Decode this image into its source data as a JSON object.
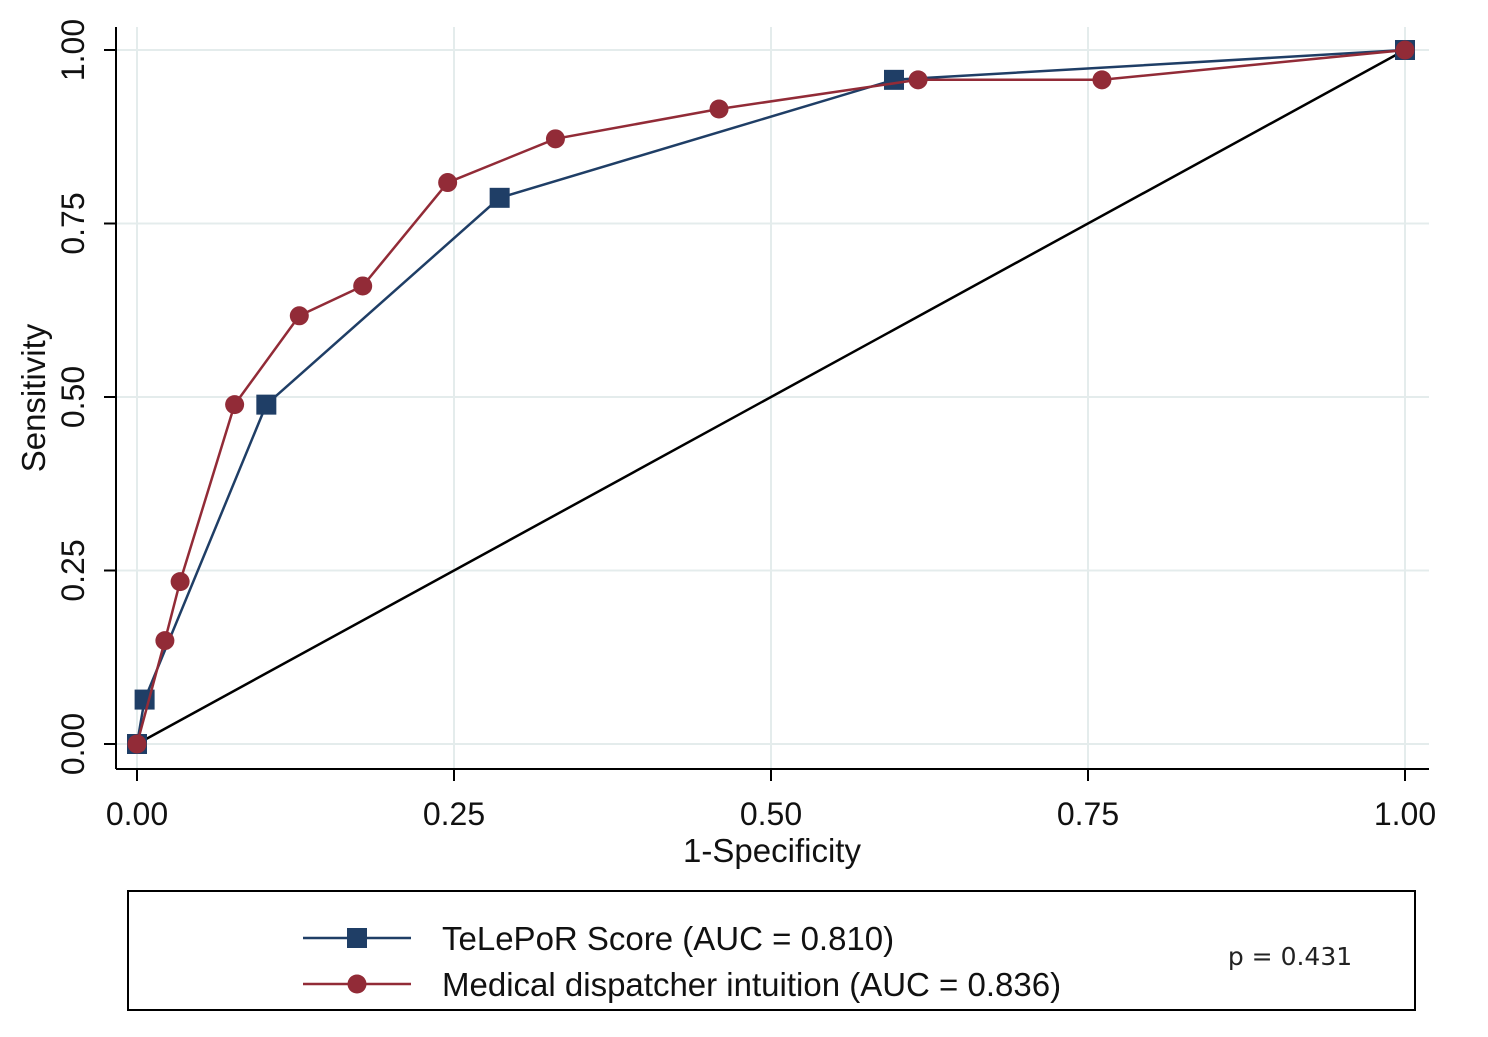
{
  "chart_data": {
    "type": "line",
    "title": "",
    "xlabel": "1-Specificity",
    "ylabel": "Sensitivity",
    "xlim": [
      0,
      1
    ],
    "ylim": [
      0,
      1
    ],
    "x_ticks": [
      "0.00",
      "0.25",
      "0.50",
      "0.75",
      "1.00"
    ],
    "y_ticks": [
      "0.00",
      "0.25",
      "0.50",
      "0.75",
      "1.00"
    ],
    "grid": true,
    "legend_position": "bottom",
    "series": [
      {
        "name": "TeLePoR Score (AUC = 0.810)",
        "color": "#1f3e66",
        "marker": "square",
        "points": [
          [
            0.0,
            0.0
          ],
          [
            0.006,
            0.064
          ],
          [
            0.102,
            0.489
          ],
          [
            0.286,
            0.787
          ],
          [
            0.597,
            0.957
          ],
          [
            1.0,
            1.0
          ]
        ]
      },
      {
        "name": "Medical dispatcher intuition (AUC = 0.836)",
        "color": "#922b37",
        "marker": "circle",
        "points": [
          [
            0.0,
            0.0
          ],
          [
            0.022,
            0.149
          ],
          [
            0.034,
            0.234
          ],
          [
            0.077,
            0.489
          ],
          [
            0.128,
            0.617
          ],
          [
            0.178,
            0.66
          ],
          [
            0.245,
            0.809
          ],
          [
            0.33,
            0.872
          ],
          [
            0.459,
            0.915
          ],
          [
            0.616,
            0.957
          ],
          [
            0.761,
            0.957
          ],
          [
            1.0,
            1.0
          ]
        ]
      }
    ],
    "reference_line": {
      "points": [
        [
          0,
          0
        ],
        [
          1,
          1
        ]
      ],
      "color": "#000000"
    },
    "annotation": "p = 0.431"
  }
}
